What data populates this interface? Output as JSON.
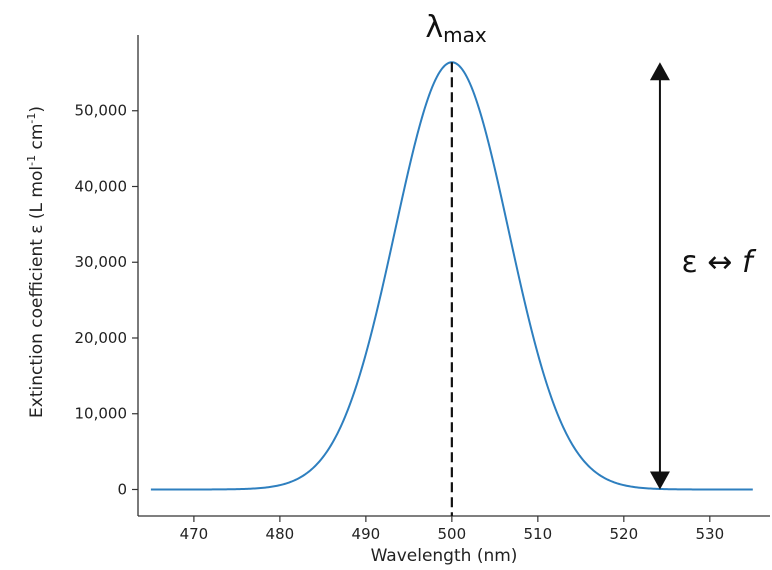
{
  "chart_data": {
    "type": "line",
    "xlabel": "Wavelength (nm)",
    "ylabel_main": "Extinction coefficient ε (L mol",
    "ylabel_sup1": "-1",
    "ylabel_mid": " cm",
    "ylabel_sup2": "-1",
    "ylabel_end": ")",
    "xlim": [
      463.5,
      537
    ],
    "ylim": [
      -3500,
      60000
    ],
    "x_ticks": [
      470,
      480,
      490,
      500,
      510,
      520,
      530
    ],
    "x_tick_labels": [
      "470",
      "480",
      "490",
      "500",
      "510",
      "520",
      "530"
    ],
    "y_ticks": [
      0,
      10000,
      20000,
      30000,
      40000,
      50000
    ],
    "y_tick_labels": [
      "0",
      "10,000",
      "20,000",
      "30,000",
      "40,000",
      "50,000"
    ],
    "series": [
      {
        "color": "#2e7fbf",
        "shape": "gaussian",
        "center": 500,
        "peak": 56400,
        "sigma": 6.6,
        "x_range": [
          465,
          535
        ]
      }
    ],
    "annotations": {
      "lambda_symbol": "λ",
      "lambda_subscript": "max",
      "lambda_x": 500,
      "arrow_x": 524.2,
      "arrow_y_range": [
        0,
        56400
      ],
      "arrow_label_main": "ε ↔ ",
      "arrow_label_italic": "f"
    },
    "grid": false
  }
}
